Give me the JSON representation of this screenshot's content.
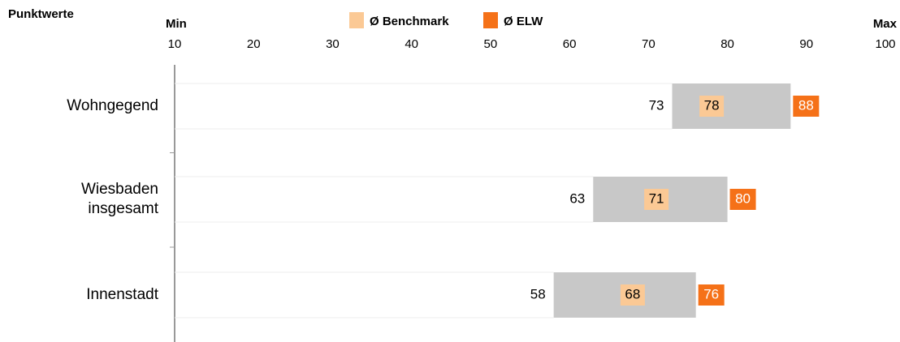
{
  "chart_data": {
    "type": "range_bar",
    "title": "Punktwerte",
    "x_min_label": "Min",
    "x_max_label": "Max",
    "xlim": [
      10,
      100
    ],
    "xticks": [
      10,
      20,
      30,
      40,
      50,
      60,
      70,
      80,
      90,
      100
    ],
    "categories": [
      "Wohngegend",
      "Wiesbaden\ninsgesamt",
      "Innenstadt"
    ],
    "min": [
      73,
      63,
      58
    ],
    "bar_color": "#c8c8c8",
    "series": [
      {
        "name": "Ø Benchmark",
        "color": "#fbc995",
        "values": [
          78,
          71,
          68
        ]
      },
      {
        "name": "Ø ELW",
        "color": "#f57118",
        "values": [
          88,
          80,
          76
        ]
      }
    ]
  }
}
